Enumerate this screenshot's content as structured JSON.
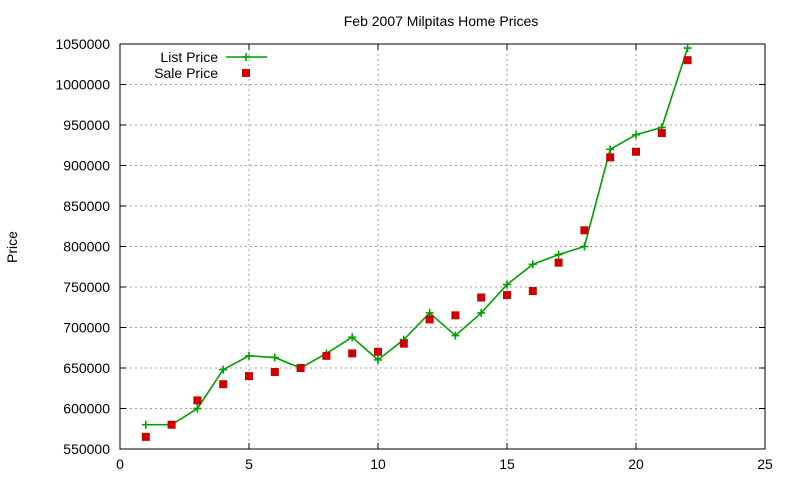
{
  "chart_data": {
    "type": "line",
    "title": "Feb 2007 Milpitas Home Prices",
    "xlabel": "",
    "ylabel": "Price",
    "xlim": [
      0,
      25
    ],
    "ylim": [
      550000,
      1050000
    ],
    "x_ticks": [
      0,
      5,
      10,
      15,
      20,
      25
    ],
    "y_ticks": [
      550000,
      600000,
      650000,
      700000,
      750000,
      800000,
      850000,
      900000,
      950000,
      1000000,
      1050000
    ],
    "grid": true,
    "legend_position": "top-left",
    "series": [
      {
        "name": "List Price",
        "style": "line-plus",
        "color": "#00a000",
        "x": [
          1,
          2,
          3,
          4,
          5,
          6,
          7,
          8,
          9,
          10,
          11,
          12,
          13,
          14,
          15,
          16,
          17,
          18,
          19,
          20,
          21,
          22
        ],
        "y": [
          580000,
          580000,
          600000,
          648000,
          665000,
          663000,
          650000,
          668000,
          688000,
          660000,
          685000,
          718000,
          690000,
          718000,
          753000,
          778000,
          790000,
          800000,
          920000,
          938000,
          947000,
          1045000
        ]
      },
      {
        "name": "Sale Price",
        "style": "square",
        "color": "#cc0000",
        "x": [
          1,
          2,
          3,
          4,
          5,
          6,
          7,
          8,
          9,
          10,
          11,
          12,
          13,
          14,
          15,
          16,
          17,
          18,
          19,
          20,
          21,
          22
        ],
        "y": [
          565000,
          580000,
          610000,
          630000,
          640000,
          645000,
          650000,
          665000,
          668000,
          670000,
          680000,
          710000,
          715000,
          737000,
          740000,
          745000,
          780000,
          820000,
          910000,
          917000,
          940000,
          1030000
        ]
      }
    ]
  }
}
